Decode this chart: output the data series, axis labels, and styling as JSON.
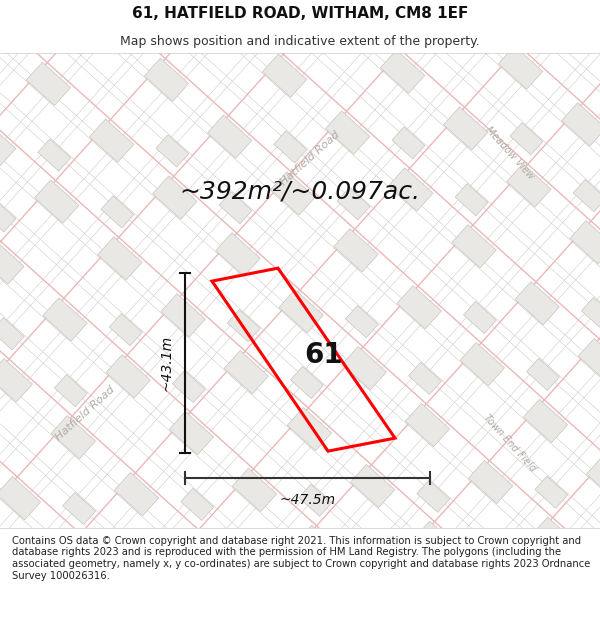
{
  "title": "61, HATFIELD ROAD, WITHAM, CM8 1EF",
  "subtitle": "Map shows position and indicative extent of the property.",
  "area_text": "~392m²/~0.097ac.",
  "property_number": "61",
  "dim_width": "~47.5m",
  "dim_height": "~43.1m",
  "footer_text": "Contains OS data © Crown copyright and database right 2021. This information is subject to Crown copyright and database rights 2023 and is reproduced with the permission of HM Land Registry. The polygons (including the associated geometry, namely x, y co-ordinates) are subject to Crown copyright and database rights 2023 Ordnance Survey 100026316.",
  "bg_color": "#ffffff",
  "map_bg": "#f5f4f2",
  "building_fill": "#eae8e5",
  "building_stroke_pink": "#e8a0a0",
  "building_stroke_gray": "#c8c4c0",
  "highlight_color": "#ff0000",
  "road_label_color": "#b0aba5",
  "title_fontsize": 11,
  "subtitle_fontsize": 9,
  "area_fontsize": 18,
  "number_fontsize": 20,
  "dim_fontsize": 10,
  "footer_fontsize": 7.2
}
